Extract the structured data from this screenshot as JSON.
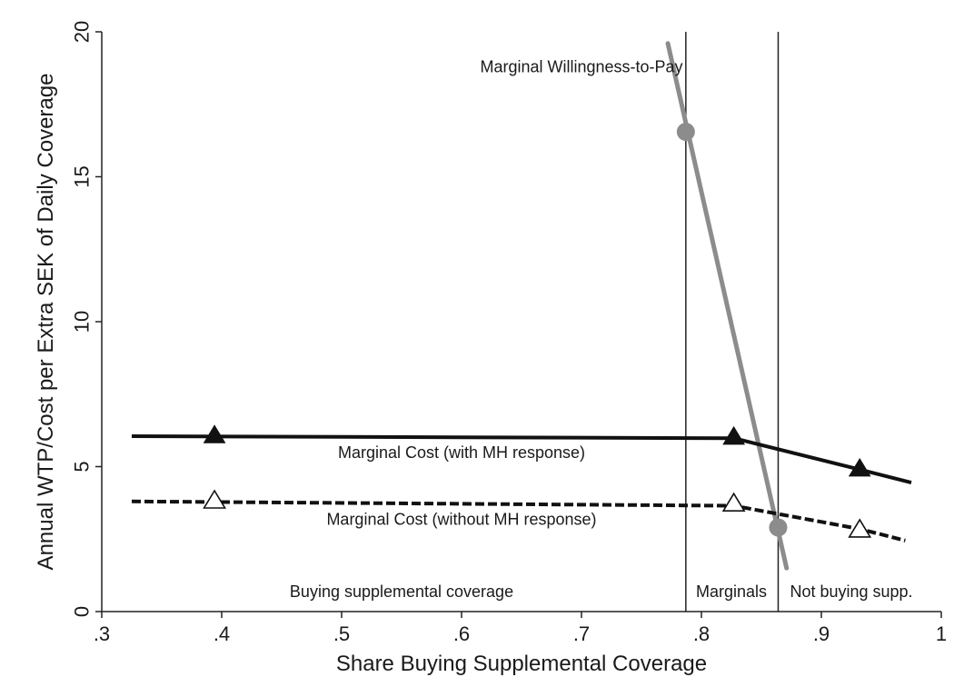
{
  "chart_data": {
    "type": "line",
    "title": "",
    "xlabel": "Share Buying Supplemental Coverage",
    "ylabel": "Annual WTP/Cost per Extra SEK of Daily Coverage",
    "xlim": [
      0.3,
      1.0
    ],
    "ylim": [
      0,
      20
    ],
    "x_ticks": [
      ".3",
      ".4",
      ".5",
      ".6",
      ".7",
      ".8",
      ".9",
      "1"
    ],
    "y_ticks": [
      "0",
      "5",
      "10",
      "15",
      "20"
    ],
    "grid": false,
    "legend": "none",
    "series": [
      {
        "name": "Marginal Willingness-to-Pay",
        "style": "solid",
        "color": "#8c8c8c",
        "marker": "circle",
        "line": [
          [
            0.772,
            19.6
          ],
          [
            0.871,
            1.5
          ]
        ],
        "points": [
          [
            0.787,
            16.55
          ],
          [
            0.864,
            2.9
          ]
        ]
      },
      {
        "name": "Marginal Cost (with MH response)",
        "style": "solid",
        "color": "#111111",
        "marker": "filled-triangle",
        "line": [
          [
            0.325,
            6.05
          ],
          [
            0.827,
            5.98
          ],
          [
            0.932,
            4.9
          ],
          [
            0.975,
            4.45
          ]
        ],
        "points": [
          [
            0.394,
            6.05
          ],
          [
            0.827,
            6.0
          ],
          [
            0.932,
            4.9
          ]
        ]
      },
      {
        "name": "Marginal Cost (without MH response)",
        "style": "dashed",
        "color": "#111111",
        "marker": "hollow-triangle",
        "line": [
          [
            0.325,
            3.8
          ],
          [
            0.827,
            3.65
          ],
          [
            0.932,
            2.85
          ],
          [
            0.97,
            2.45
          ]
        ],
        "points": [
          [
            0.394,
            3.8
          ],
          [
            0.827,
            3.7
          ],
          [
            0.932,
            2.8
          ]
        ]
      }
    ],
    "vertical_lines": [
      0.787,
      0.864
    ],
    "annotations": [
      {
        "text": "Marginal Willingness-to-Pay",
        "x": 0.7,
        "y": 18.6
      },
      {
        "text": "Marginal Cost (with MH response)",
        "x": 0.6,
        "y": 5.3
      },
      {
        "text": "Marginal Cost (without MH response)",
        "x": 0.6,
        "y": 3.0
      },
      {
        "text": "Buying supplemental coverage",
        "x": 0.55,
        "y": 0.5
      },
      {
        "text": "Marginals",
        "x": 0.825,
        "y": 0.5
      },
      {
        "text": "Not buying supp.",
        "x": 0.925,
        "y": 0.5
      }
    ]
  }
}
